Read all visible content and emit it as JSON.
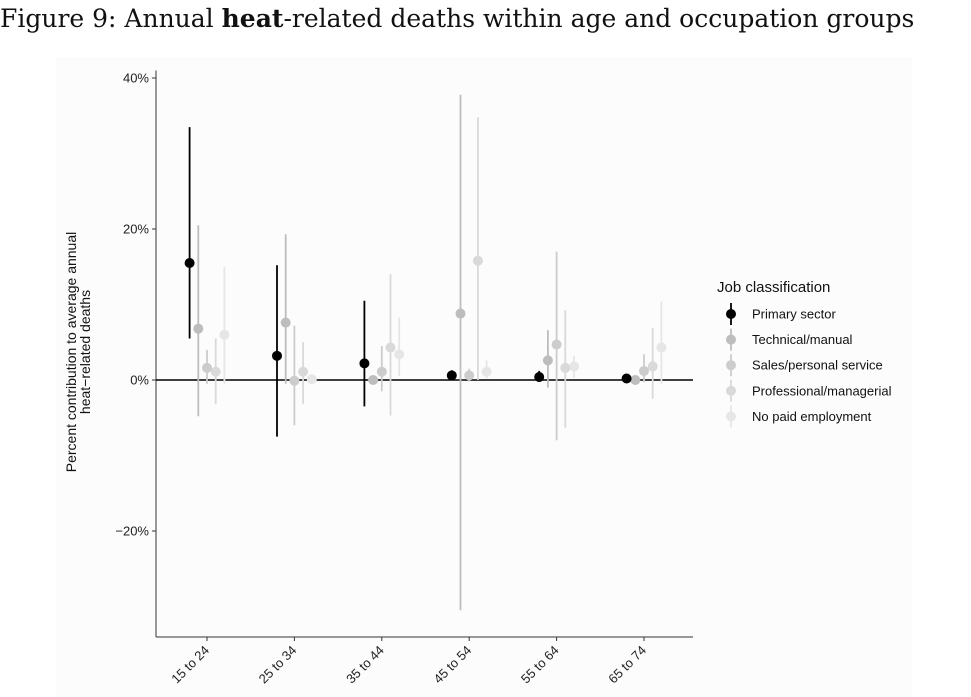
{
  "figure": {
    "caption_prefix": "Figure 9: Annual ",
    "caption_bold": "heat",
    "caption_suffix": "-related deaths within age and occupation groups"
  },
  "chart_data": {
    "type": "scatter",
    "subtype": "point-range (dodged)",
    "title": "Figure 9: Annual heat-related deaths within age and occupation groups",
    "xlabel": "",
    "ylabel_lines": [
      "Percent contribution to average annual",
      "heat−related deaths"
    ],
    "categories": [
      "15 to 24",
      "25 to 34",
      "35 to 44",
      "45 to 54",
      "55 to 64",
      "65 to 74"
    ],
    "y_ticks": [
      40,
      20,
      0,
      -20
    ],
    "y_tick_labels": [
      "40%",
      "20%",
      "0%",
      "−20%"
    ],
    "ylim": [
      -34,
      41
    ],
    "y_unit": "%",
    "reference_line": 0,
    "grid": false,
    "legend": {
      "title": "Job classification",
      "position": "right"
    },
    "series": [
      {
        "name": "Primary sector",
        "color": "#000000",
        "values": [
          15.5,
          3.2,
          2.2,
          0.6,
          0.4,
          0.2
        ],
        "lower": [
          5.5,
          -7.5,
          -3.5,
          0.0,
          0.0,
          0.0
        ],
        "upper": [
          33.5,
          15.2,
          10.5,
          1.3,
          1.2,
          0.5
        ]
      },
      {
        "name": "Technical/manual",
        "color": "#bdbdbd",
        "values": [
          6.8,
          7.6,
          0.0,
          8.8,
          2.6,
          0.0
        ],
        "lower": [
          -4.8,
          -0.5,
          -0.5,
          -30.5,
          -1.0,
          -0.3
        ],
        "upper": [
          20.5,
          19.3,
          0.5,
          37.8,
          6.6,
          0.3
        ]
      },
      {
        "name": "Sales/personal service",
        "color": "#cccccc",
        "values": [
          1.6,
          -0.1,
          1.1,
          0.6,
          4.7,
          1.2
        ],
        "lower": [
          -0.5,
          -6.0,
          -1.5,
          -0.2,
          -8.0,
          -0.3
        ],
        "upper": [
          4.0,
          7.2,
          4.5,
          1.5,
          17.0,
          3.4
        ]
      },
      {
        "name": "Professional/managerial",
        "color": "#d9d9d9",
        "values": [
          1.1,
          1.1,
          4.3,
          15.8,
          1.6,
          1.8
        ],
        "lower": [
          -3.2,
          -3.2,
          -4.7,
          0.0,
          -6.3,
          -2.5
        ],
        "upper": [
          5.5,
          5.0,
          14.0,
          34.8,
          9.2,
          6.9
        ]
      },
      {
        "name": "No paid employment",
        "color": "#e6e6e6",
        "values": [
          6.0,
          0.1,
          3.4,
          1.1,
          1.8,
          4.3
        ],
        "lower": [
          -0.5,
          -0.3,
          0.5,
          0.2,
          0.3,
          -0.5
        ],
        "upper": [
          15.0,
          0.5,
          8.3,
          2.6,
          3.2,
          10.4
        ]
      }
    ]
  }
}
